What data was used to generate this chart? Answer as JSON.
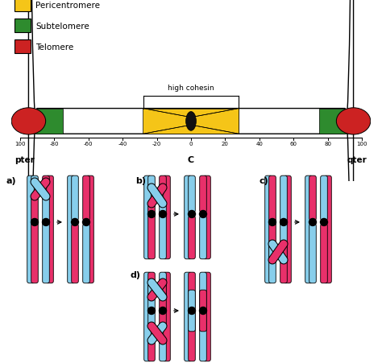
{
  "legend_items": [
    {
      "label": "Pericentromere",
      "color": "#F5C518"
    },
    {
      "label": "Subtelomere",
      "color": "#2E8B2E"
    },
    {
      "label": "Telomere",
      "color": "#CC2222"
    }
  ],
  "telomere_color": "#CC2222",
  "subtelomere_color": "#2E8B2E",
  "pericentromere_color": "#F5C518",
  "centromere_color": "#111111",
  "sky_blue": "#87CEEB",
  "hot_pink": "#E8306A",
  "bg": "#FFFFFF",
  "axis_ticks": [
    -100,
    -80,
    -60,
    -40,
    -20,
    0,
    20,
    40,
    60,
    80,
    100
  ]
}
